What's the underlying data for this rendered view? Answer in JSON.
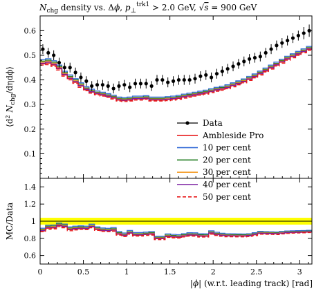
{
  "chart_data": [
    {
      "type": "line",
      "panel": "main",
      "title": "N_chg density vs. Δφ, p⊥^trk1 > 2.0 GeV, √s = 900 GeV",
      "title_parts": {
        "n": "N",
        "n_sub": "chg",
        "mid": " density vs. Δ",
        "phi": "ϕ",
        "sep": ", ",
        "p": "p",
        "p_sub": "⊥",
        "p_sup": "trk1",
        "cut": " > 2.0 GeV, ",
        "sqrt": "√",
        "s": "s",
        "energy": " = 900 GeV"
      },
      "ylabel": "⟨d² N_chg / dη dϕ⟩",
      "ylabel_parts": {
        "open": "⟨d",
        "sq": "2",
        "n": " N",
        "n_sub": "chg",
        "rest": "/dηdϕ⟩"
      },
      "xlim": [
        0,
        3.14159
      ],
      "ylim": [
        0,
        0.66
      ],
      "yticks": [
        "0.1",
        "0.2",
        "0.3",
        "0.4",
        "0.5",
        "0.6"
      ],
      "x": [
        0.0314,
        0.0942,
        0.1571,
        0.2199,
        0.2827,
        0.3456,
        0.4084,
        0.4712,
        0.5341,
        0.5969,
        0.6597,
        0.7226,
        0.7854,
        0.8482,
        0.9111,
        0.9739,
        1.0367,
        1.0996,
        1.1624,
        1.2252,
        1.2881,
        1.3509,
        1.4137,
        1.4765,
        1.5394,
        1.6022,
        1.665,
        1.7279,
        1.7907,
        1.8535,
        1.9164,
        1.9792,
        2.042,
        2.1049,
        2.1677,
        2.2305,
        2.2934,
        2.3562,
        2.419,
        2.4819,
        2.5447,
        2.6075,
        2.6704,
        2.7332,
        2.796,
        2.8588,
        2.9217,
        2.9845,
        3.0473,
        3.1102
      ],
      "series": [
        {
          "name": "Data",
          "style": "points",
          "color": "#000000",
          "values": [
            0.525,
            0.51,
            0.5,
            0.47,
            0.45,
            0.45,
            0.43,
            0.41,
            0.395,
            0.375,
            0.38,
            0.38,
            0.375,
            0.365,
            0.375,
            0.38,
            0.37,
            0.385,
            0.385,
            0.385,
            0.375,
            0.4,
            0.4,
            0.39,
            0.395,
            0.4,
            0.4,
            0.4,
            0.405,
            0.415,
            0.42,
            0.41,
            0.425,
            0.435,
            0.445,
            0.455,
            0.465,
            0.475,
            0.485,
            0.49,
            0.495,
            0.51,
            0.525,
            0.54,
            0.55,
            0.56,
            0.57,
            0.58,
            0.59,
            0.6
          ],
          "errors": [
            0.02,
            0.02,
            0.02,
            0.02,
            0.02,
            0.02,
            0.02,
            0.02,
            0.02,
            0.02,
            0.02,
            0.02,
            0.02,
            0.02,
            0.02,
            0.02,
            0.02,
            0.02,
            0.02,
            0.02,
            0.02,
            0.02,
            0.02,
            0.02,
            0.02,
            0.02,
            0.02,
            0.02,
            0.02,
            0.02,
            0.02,
            0.02,
            0.02,
            0.02,
            0.02,
            0.02,
            0.02,
            0.02,
            0.02,
            0.02,
            0.02,
            0.02,
            0.02,
            0.02,
            0.02,
            0.02,
            0.02,
            0.02,
            0.025,
            0.025
          ]
        },
        {
          "name": "Ambleside Pro",
          "style": "step",
          "color": "#e8191b",
          "values": [
            0.465,
            0.468,
            0.46,
            0.445,
            0.42,
            0.405,
            0.39,
            0.375,
            0.36,
            0.35,
            0.343,
            0.338,
            0.333,
            0.326,
            0.318,
            0.316,
            0.318,
            0.322,
            0.322,
            0.325,
            0.318,
            0.318,
            0.318,
            0.32,
            0.322,
            0.325,
            0.33,
            0.334,
            0.338,
            0.342,
            0.346,
            0.352,
            0.358,
            0.362,
            0.368,
            0.376,
            0.384,
            0.392,
            0.402,
            0.412,
            0.424,
            0.436,
            0.448,
            0.46,
            0.472,
            0.484,
            0.494,
            0.504,
            0.514,
            0.524
          ]
        },
        {
          "name": "10 per cent",
          "style": "step",
          "color": "#3a70d8",
          "values": [
            0.482,
            0.486,
            0.478,
            0.46,
            0.435,
            0.42,
            0.405,
            0.388,
            0.372,
            0.362,
            0.355,
            0.35,
            0.344,
            0.338,
            0.33,
            0.328,
            0.33,
            0.334,
            0.334,
            0.336,
            0.33,
            0.33,
            0.33,
            0.332,
            0.334,
            0.337,
            0.342,
            0.346,
            0.35,
            0.354,
            0.358,
            0.364,
            0.37,
            0.374,
            0.38,
            0.388,
            0.396,
            0.404,
            0.414,
            0.424,
            0.436,
            0.448,
            0.46,
            0.472,
            0.484,
            0.496,
            0.506,
            0.516,
            0.526,
            0.536
          ]
        },
        {
          "name": "20 per cent",
          "style": "step",
          "color": "#1e7a1e",
          "values": [
            0.476,
            0.48,
            0.472,
            0.455,
            0.43,
            0.414,
            0.4,
            0.383,
            0.367,
            0.357,
            0.35,
            0.345,
            0.339,
            0.333,
            0.325,
            0.323,
            0.325,
            0.329,
            0.329,
            0.331,
            0.325,
            0.325,
            0.325,
            0.327,
            0.329,
            0.332,
            0.337,
            0.341,
            0.345,
            0.349,
            0.353,
            0.359,
            0.365,
            0.369,
            0.375,
            0.383,
            0.391,
            0.399,
            0.409,
            0.419,
            0.431,
            0.443,
            0.455,
            0.467,
            0.479,
            0.491,
            0.501,
            0.511,
            0.521,
            0.531
          ]
        },
        {
          "name": "30 per cent",
          "style": "step",
          "color": "#f39c27",
          "values": [
            0.472,
            0.476,
            0.468,
            0.451,
            0.426,
            0.41,
            0.396,
            0.379,
            0.364,
            0.354,
            0.347,
            0.342,
            0.336,
            0.33,
            0.322,
            0.32,
            0.322,
            0.326,
            0.326,
            0.328,
            0.322,
            0.322,
            0.322,
            0.324,
            0.326,
            0.329,
            0.334,
            0.338,
            0.342,
            0.346,
            0.35,
            0.356,
            0.362,
            0.366,
            0.372,
            0.38,
            0.388,
            0.396,
            0.406,
            0.416,
            0.428,
            0.44,
            0.452,
            0.464,
            0.476,
            0.488,
            0.498,
            0.508,
            0.518,
            0.528
          ]
        },
        {
          "name": "40 per cent",
          "style": "step",
          "color": "#7a1fa0",
          "values": [
            0.468,
            0.472,
            0.464,
            0.448,
            0.423,
            0.407,
            0.393,
            0.377,
            0.362,
            0.352,
            0.345,
            0.34,
            0.334,
            0.328,
            0.32,
            0.318,
            0.32,
            0.324,
            0.324,
            0.326,
            0.32,
            0.32,
            0.32,
            0.322,
            0.324,
            0.327,
            0.332,
            0.336,
            0.34,
            0.344,
            0.348,
            0.354,
            0.36,
            0.364,
            0.37,
            0.378,
            0.386,
            0.394,
            0.404,
            0.414,
            0.426,
            0.438,
            0.45,
            0.462,
            0.474,
            0.486,
            0.496,
            0.506,
            0.516,
            0.526
          ]
        },
        {
          "name": "50 per cent",
          "style": "step-dashed",
          "color": "#e8191b",
          "values": [
            0.46,
            0.462,
            0.455,
            0.44,
            0.415,
            0.4,
            0.386,
            0.37,
            0.356,
            0.346,
            0.339,
            0.334,
            0.329,
            0.322,
            0.314,
            0.312,
            0.314,
            0.318,
            0.318,
            0.321,
            0.314,
            0.314,
            0.314,
            0.316,
            0.318,
            0.321,
            0.326,
            0.33,
            0.334,
            0.338,
            0.342,
            0.348,
            0.354,
            0.358,
            0.364,
            0.372,
            0.38,
            0.388,
            0.398,
            0.408,
            0.42,
            0.432,
            0.444,
            0.456,
            0.468,
            0.48,
            0.49,
            0.5,
            0.51,
            0.52
          ]
        }
      ],
      "legend_position": "center-right"
    },
    {
      "type": "line",
      "panel": "ratio",
      "ylabel": "MC/Data",
      "xlabel": "|ϕ| (w.r.t. leading track) [rad]",
      "xlabel_parts": {
        "bar1": "|",
        "phi": "ϕ",
        "rest": "| (w.r.t. leading track) [rad]"
      },
      "xlim": [
        0,
        3.14159
      ],
      "ylim": [
        0.5,
        1.5
      ],
      "yticks": [
        "0.6",
        "0.8",
        "1",
        "1.2",
        "1.4"
      ],
      "xticks": [
        "0",
        "0.5",
        "1",
        "1.5",
        "2",
        "2.5",
        "3"
      ],
      "band": {
        "low": 0.96,
        "high": 1.04,
        "color": "#ffff00"
      },
      "reference": 1.0
    }
  ]
}
